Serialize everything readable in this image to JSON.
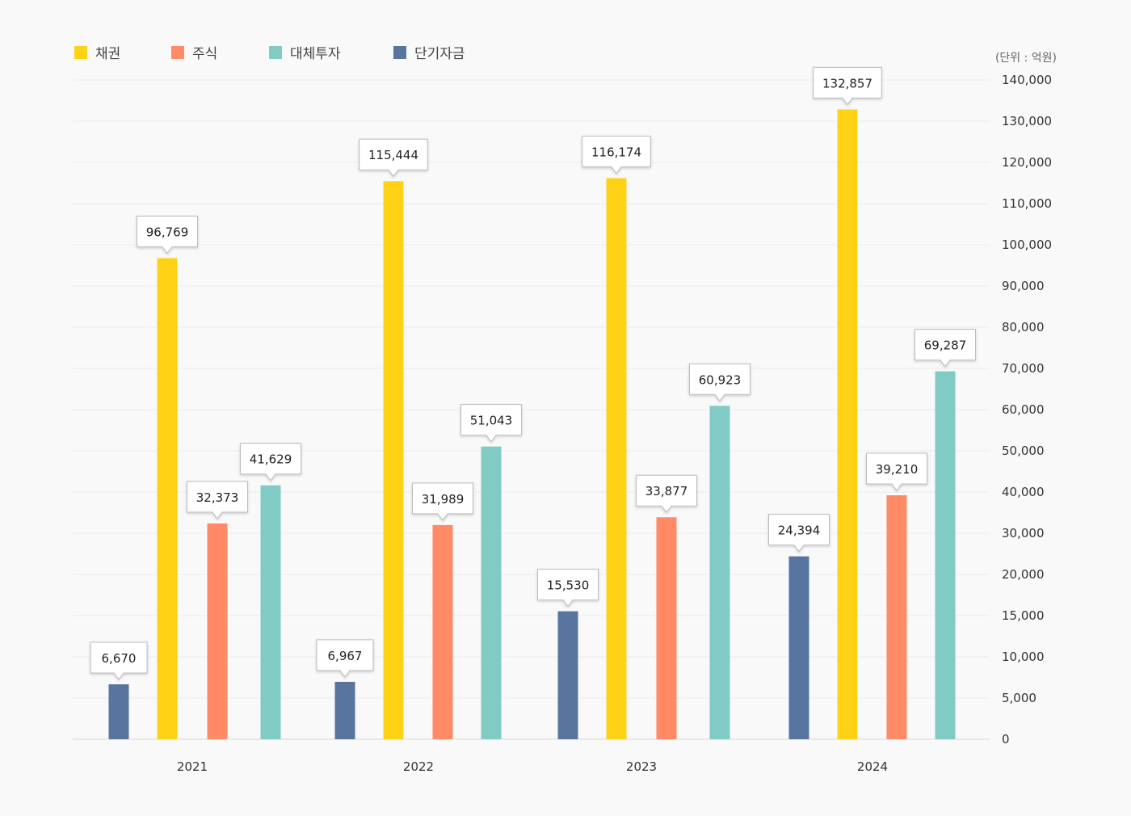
{
  "chart_data": {
    "type": "bar",
    "unit_label": "(단위 : 억원)",
    "categories": [
      "2021",
      "2022",
      "2023",
      "2024"
    ],
    "series": [
      {
        "name": "단기자금",
        "color": "#57759e",
        "values": [
          6670,
          6967,
          15530,
          24394
        ]
      },
      {
        "name": "채권",
        "color": "#ffd216",
        "values": [
          96769,
          115444,
          116174,
          132857
        ]
      },
      {
        "name": "주식",
        "color": "#ff8a65",
        "values": [
          32373,
          31989,
          33877,
          39210
        ]
      },
      {
        "name": "대체투자",
        "color": "#80cbc4",
        "values": [
          41629,
          51043,
          60923,
          69287
        ]
      }
    ],
    "legend_order": [
      "채권",
      "주식",
      "대체투자",
      "단기자금"
    ],
    "legend_position": "top-left",
    "y_axis_position": "right",
    "y_ticks": [
      "0",
      "5,000",
      "10,000",
      "15,000",
      "20,000",
      "30,000",
      "40,000",
      "50,000",
      "60,000",
      "70,000",
      "80,000",
      "90,000",
      "100,000",
      "110,000",
      "120,000",
      "130,000",
      "140,000"
    ],
    "ylim": [
      0,
      140000
    ],
    "grid": true,
    "data_labels": true
  }
}
